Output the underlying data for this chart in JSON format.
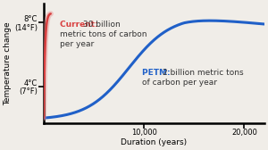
{
  "xlabel": "Duration (years)",
  "ylabel": "Temperature change",
  "background_color": "#f0ede8",
  "ytick_labels_top": "8°C\n(14°F)",
  "ytick_labels_mid": "4°C\n(7°F)",
  "xtick_labels": [
    "10,000",
    "20,000"
  ],
  "xtick_positions": [
    10000,
    20000
  ],
  "xlim": [
    0,
    22000
  ],
  "ylim": [
    -0.15,
    3.6
  ],
  "petm_color": "#2060c8",
  "current_color": "#d94040",
  "current_color_light": "#e88888",
  "annotation_current_color": "#d94040",
  "annotation_petm_color": "#2060c8",
  "y_4c": 1.0,
  "y_8c": 3.0,
  "ytick_pos": [
    1.0,
    3.0
  ],
  "tick_fontsize": 6.0,
  "label_fontsize": 6.5,
  "annot_fontsize": 6.5
}
